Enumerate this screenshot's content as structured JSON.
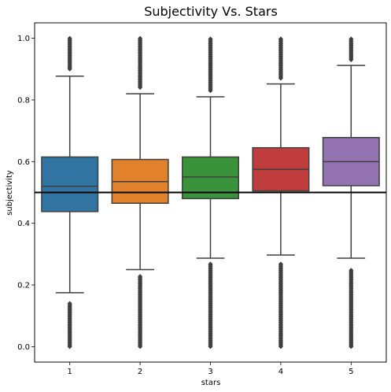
{
  "chart_data": {
    "type": "box",
    "title": "Subjectivity Vs. Stars",
    "xlabel": "stars",
    "ylabel": "subjectivity",
    "categories": [
      "1",
      "2",
      "3",
      "4",
      "5"
    ],
    "ylim": [
      -0.05,
      1.05
    ],
    "yticks": [
      0.0,
      0.2,
      0.4,
      0.6,
      0.8,
      1.0
    ],
    "ytick_labels": [
      "0.0",
      "0.2",
      "0.4",
      "0.6",
      "0.8",
      "1.0"
    ],
    "grid": false,
    "reference_line": {
      "y": 0.5,
      "color": "#000000"
    },
    "boxes": [
      {
        "category": "1",
        "color": "#3274a1",
        "whisker_low": 0.175,
        "q1": 0.438,
        "median": 0.52,
        "q3": 0.615,
        "whisker_high": 0.877,
        "outliers_low": [
          0.0,
          0.02,
          0.05,
          0.08,
          0.11,
          0.14
        ],
        "outliers_high": [
          0.9,
          0.93,
          0.96,
          1.0
        ]
      },
      {
        "category": "2",
        "color": "#e1812c",
        "whisker_low": 0.25,
        "q1": 0.465,
        "median": 0.535,
        "q3": 0.607,
        "whisker_high": 0.82,
        "outliers_low": [
          0.0,
          0.03,
          0.07,
          0.11,
          0.15,
          0.19,
          0.23
        ],
        "outliers_high": [
          0.84,
          0.88,
          0.92,
          0.96,
          1.0
        ]
      },
      {
        "category": "3",
        "color": "#3a923a",
        "whisker_low": 0.287,
        "q1": 0.48,
        "median": 0.55,
        "q3": 0.615,
        "whisker_high": 0.81,
        "outliers_low": [
          0.0,
          0.05,
          0.1,
          0.14,
          0.19,
          0.23,
          0.27
        ],
        "outliers_high": [
          0.83,
          0.87,
          0.91,
          0.95,
          1.0
        ]
      },
      {
        "category": "4",
        "color": "#c03d3e",
        "whisker_low": 0.297,
        "q1": 0.505,
        "median": 0.575,
        "q3": 0.645,
        "whisker_high": 0.852,
        "outliers_low": [
          0.0,
          0.05,
          0.1,
          0.14,
          0.19,
          0.23,
          0.27
        ],
        "outliers_high": [
          0.87,
          0.91,
          0.95,
          1.0
        ]
      },
      {
        "category": "5",
        "color": "#9372b2",
        "whisker_low": 0.287,
        "q1": 0.522,
        "median": 0.6,
        "q3": 0.678,
        "whisker_high": 0.912,
        "outliers_low": [
          0.0,
          0.04,
          0.08,
          0.12,
          0.16,
          0.2,
          0.25
        ],
        "outliers_high": [
          0.93,
          0.96,
          1.0
        ]
      }
    ]
  }
}
